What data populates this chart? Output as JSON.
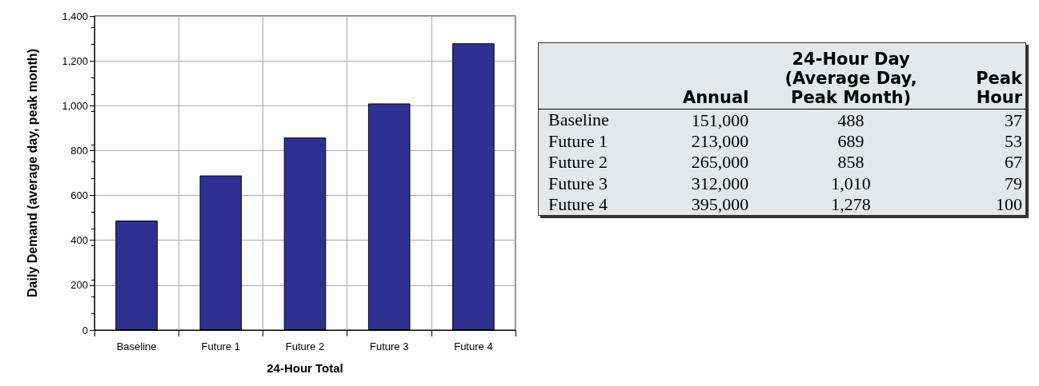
{
  "chart_data": [
    {
      "type": "bar",
      "xlabel": "24-Hour Total",
      "ylabel": "Daily Demand (average day, peak month)",
      "categories": [
        "Baseline",
        "Future 1",
        "Future 2",
        "Future 3",
        "Future 4"
      ],
      "values": [
        488,
        689,
        858,
        1010,
        1278
      ],
      "color": "#2e3192",
      "ylim": [
        0,
        1400
      ],
      "yticks": [
        0,
        200,
        400,
        600,
        800,
        {
          "value": 1000,
          "label": "1,000"
        },
        {
          "value": 1200,
          "label": "1,200"
        },
        {
          "value": 1400,
          "label": "1,400"
        }
      ],
      "grid": true
    },
    {
      "type": "other",
      "categories": [
        "Baseline",
        "Future 1",
        "Future 2",
        "Future 3",
        "Future 4"
      ],
      "series": [
        {
          "name": "Annual",
          "values": [
            151000,
            213000,
            265000,
            312000,
            395000
          ],
          "value_labels": [
            "151,000",
            "213,000",
            "265,000",
            "312,000",
            "395,000"
          ]
        },
        {
          "name": "24-Hour Day\n(Average Day,\nPeak Month)",
          "values": [
            488,
            689,
            858,
            1010,
            1278
          ],
          "value_labels": [
            "488",
            "689",
            "858",
            "1,010",
            "1,278"
          ]
        },
        {
          "name": "Peak\nHour",
          "values": [
            37,
            53,
            67,
            79,
            100
          ],
          "value_labels": [
            "37",
            "53",
            "67",
            "79",
            "100"
          ]
        }
      ]
    }
  ]
}
